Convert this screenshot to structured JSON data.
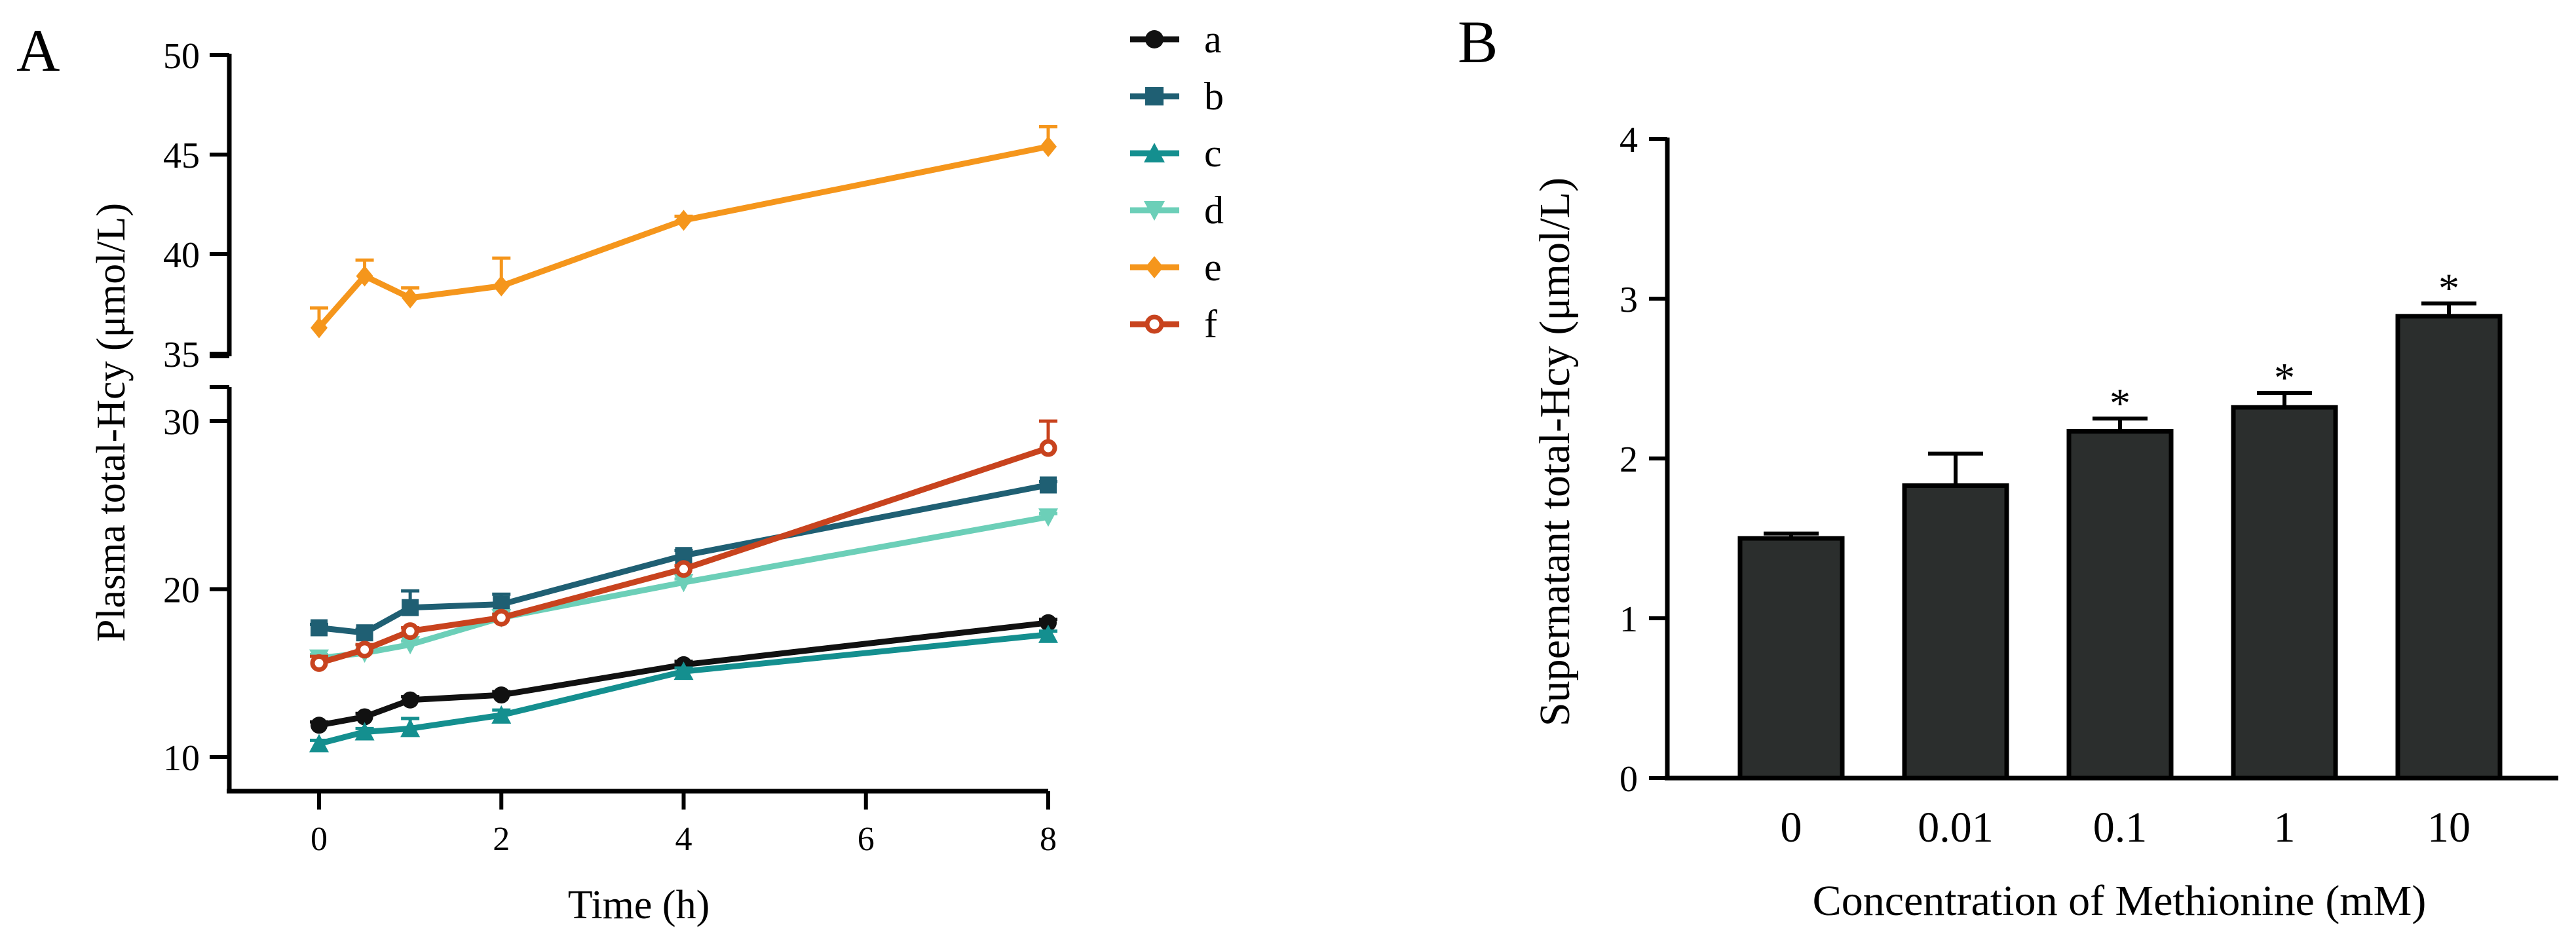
{
  "chart_data": [
    {
      "type": "line",
      "panel_label": "A",
      "xlabel": "Time (h)",
      "ylabel": "Plasma total-Hcy (μmol/L)",
      "x_ticks": [
        "0",
        "2",
        "4",
        "6",
        "8"
      ],
      "xlim": [
        -1,
        8
      ],
      "y_ticks_lower": [
        "10",
        "20",
        "30"
      ],
      "y_ticks_upper": [
        "35",
        "40",
        "45",
        "50"
      ],
      "ylim_lower": [
        8,
        32
      ],
      "ylim_upper": [
        35,
        50
      ],
      "broken_axis": true,
      "legend_position": "right",
      "series": [
        {
          "name": "a",
          "color": "#111111",
          "marker": "circle",
          "x": [
            0,
            0.5,
            1,
            2,
            4,
            8
          ],
          "y": [
            11.9,
            12.4,
            13.4,
            13.7,
            15.5,
            18.0
          ],
          "err": [
            0.2,
            0.2,
            0.2,
            0.2,
            0.2,
            0.2
          ]
        },
        {
          "name": "b",
          "color": "#1f5f73",
          "marker": "square",
          "x": [
            0,
            0.5,
            1,
            2,
            4,
            8
          ],
          "y": [
            17.7,
            17.4,
            18.9,
            19.1,
            22.0,
            26.2
          ],
          "err": [
            0.2,
            0.2,
            1.0,
            0.6,
            0.3,
            0.2
          ]
        },
        {
          "name": "c",
          "color": "#148f8f",
          "marker": "triangle-up",
          "x": [
            0,
            0.5,
            1,
            2,
            4,
            8
          ],
          "y": [
            10.8,
            11.5,
            11.7,
            12.5,
            15.1,
            17.3
          ],
          "err": [
            0.2,
            0.2,
            0.6,
            0.3,
            0.2,
            0.2
          ]
        },
        {
          "name": "d",
          "color": "#6ccfb8",
          "marker": "triangle-down",
          "x": [
            0,
            0.5,
            1,
            2,
            4,
            8
          ],
          "y": [
            15.9,
            16.2,
            16.7,
            18.3,
            20.4,
            24.3
          ],
          "err": [
            0.2,
            0.2,
            0.2,
            0.2,
            0.2,
            0.2
          ]
        },
        {
          "name": "e",
          "color": "#f5961c",
          "marker": "diamond",
          "x": [
            0,
            0.5,
            1,
            2,
            4,
            8
          ],
          "y": [
            36.3,
            38.9,
            37.8,
            38.4,
            41.7,
            45.4
          ],
          "err": [
            1.0,
            0.8,
            0.5,
            1.4,
            0.2,
            1.0
          ]
        },
        {
          "name": "f",
          "color": "#c8431e",
          "marker": "circle-open",
          "x": [
            0,
            0.5,
            1,
            2,
            4,
            8
          ],
          "y": [
            15.6,
            16.4,
            17.5,
            18.3,
            21.2,
            28.4
          ],
          "err": [
            0.4,
            0.3,
            0.2,
            0.2,
            0.2,
            1.6
          ]
        }
      ]
    },
    {
      "type": "bar",
      "panel_label": "B",
      "xlabel": "Concentration of Methionine (mM)",
      "ylabel": "Supernatant total-Hcy (μmol/L)",
      "categories": [
        "0",
        "0.01",
        "0.1",
        "1",
        "10"
      ],
      "values": [
        1.5,
        1.83,
        2.17,
        2.32,
        2.89
      ],
      "errors": [
        0.03,
        0.2,
        0.08,
        0.09,
        0.08
      ],
      "significance": [
        "",
        "",
        "*",
        "*",
        "*"
      ],
      "y_ticks": [
        "0",
        "1",
        "2",
        "3",
        "4"
      ],
      "ylim": [
        0,
        4
      ],
      "bar_color": "#2b2e2d"
    }
  ]
}
